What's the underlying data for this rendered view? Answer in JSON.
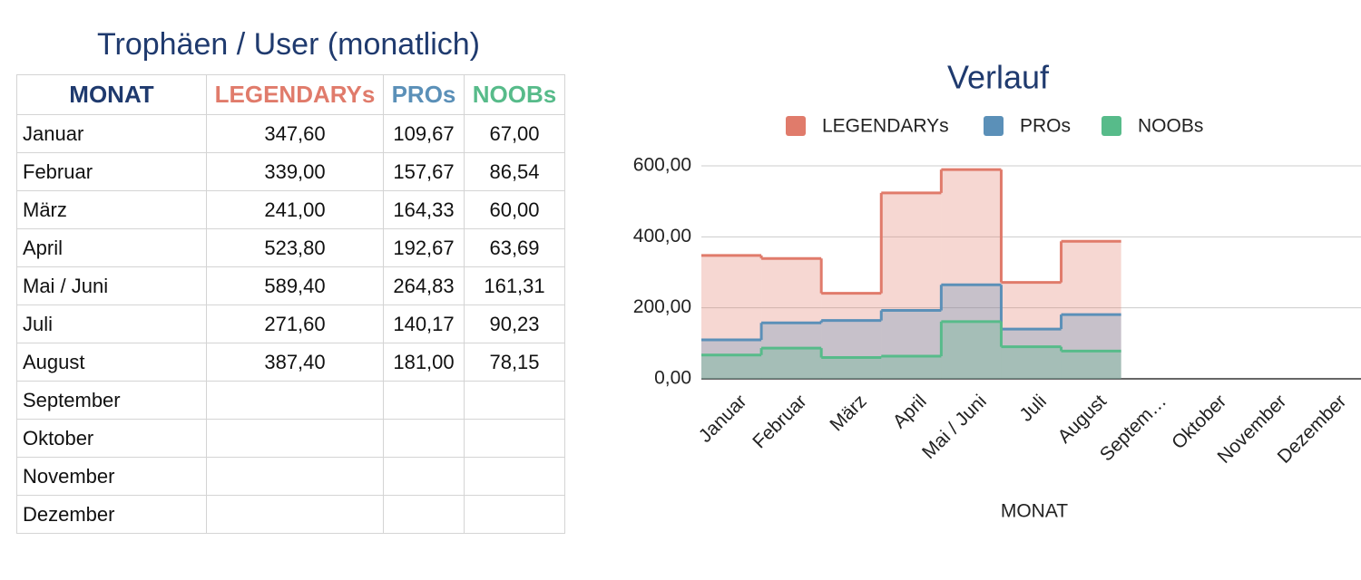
{
  "table": {
    "title": "Trophäen / User (monatlich)",
    "header": [
      "MONAT",
      "LEGENDARYs",
      "PROs",
      "NOOBs"
    ],
    "header_colors": [
      "#1f3a6e",
      "#e07b6b",
      "#5b90b8",
      "#57bb8a"
    ],
    "rows": [
      [
        "Januar",
        "347,60",
        "109,67",
        "67,00"
      ],
      [
        "Februar",
        "339,00",
        "157,67",
        "86,54"
      ],
      [
        "März",
        "241,00",
        "164,33",
        "60,00"
      ],
      [
        "April",
        "523,80",
        "192,67",
        "63,69"
      ],
      [
        "Mai / Juni",
        "589,40",
        "264,83",
        "161,31"
      ],
      [
        "Juli",
        "271,60",
        "140,17",
        "90,23"
      ],
      [
        "August",
        "387,40",
        "181,00",
        "78,15"
      ],
      [
        "September",
        "",
        "",
        ""
      ],
      [
        "Oktober",
        "",
        "",
        ""
      ],
      [
        "November",
        "",
        "",
        ""
      ],
      [
        "Dezember",
        "",
        "",
        ""
      ]
    ]
  },
  "chart_data": {
    "type": "stepped-area",
    "title": "Verlauf",
    "xlabel": "MONAT",
    "legend": "top",
    "grid": true,
    "categories": [
      "Januar",
      "Februar",
      "März",
      "April",
      "Mai / Juni",
      "Juli",
      "August",
      "Septem…",
      "Oktober",
      "November",
      "Dezember"
    ],
    "series": [
      {
        "name": "LEGENDARYs",
        "color": "#e07b6b",
        "values": [
          347.6,
          339.0,
          241.0,
          523.8,
          589.4,
          271.6,
          387.4,
          null,
          null,
          null,
          null
        ]
      },
      {
        "name": "PROs",
        "color": "#5b90b8",
        "values": [
          109.67,
          157.67,
          164.33,
          192.67,
          264.83,
          140.17,
          181.0,
          null,
          null,
          null,
          null
        ]
      },
      {
        "name": "NOOBs",
        "color": "#57bb8a",
        "values": [
          67.0,
          86.54,
          60.0,
          63.69,
          161.31,
          90.23,
          78.15,
          null,
          null,
          null,
          null
        ]
      }
    ],
    "ylim": [
      0,
      600
    ],
    "yticks": [
      {
        "value": 0,
        "label": "0,00"
      },
      {
        "value": 200,
        "label": "200,00"
      },
      {
        "value": 400,
        "label": "400,00"
      },
      {
        "value": 600,
        "label": "600,00"
      }
    ]
  }
}
